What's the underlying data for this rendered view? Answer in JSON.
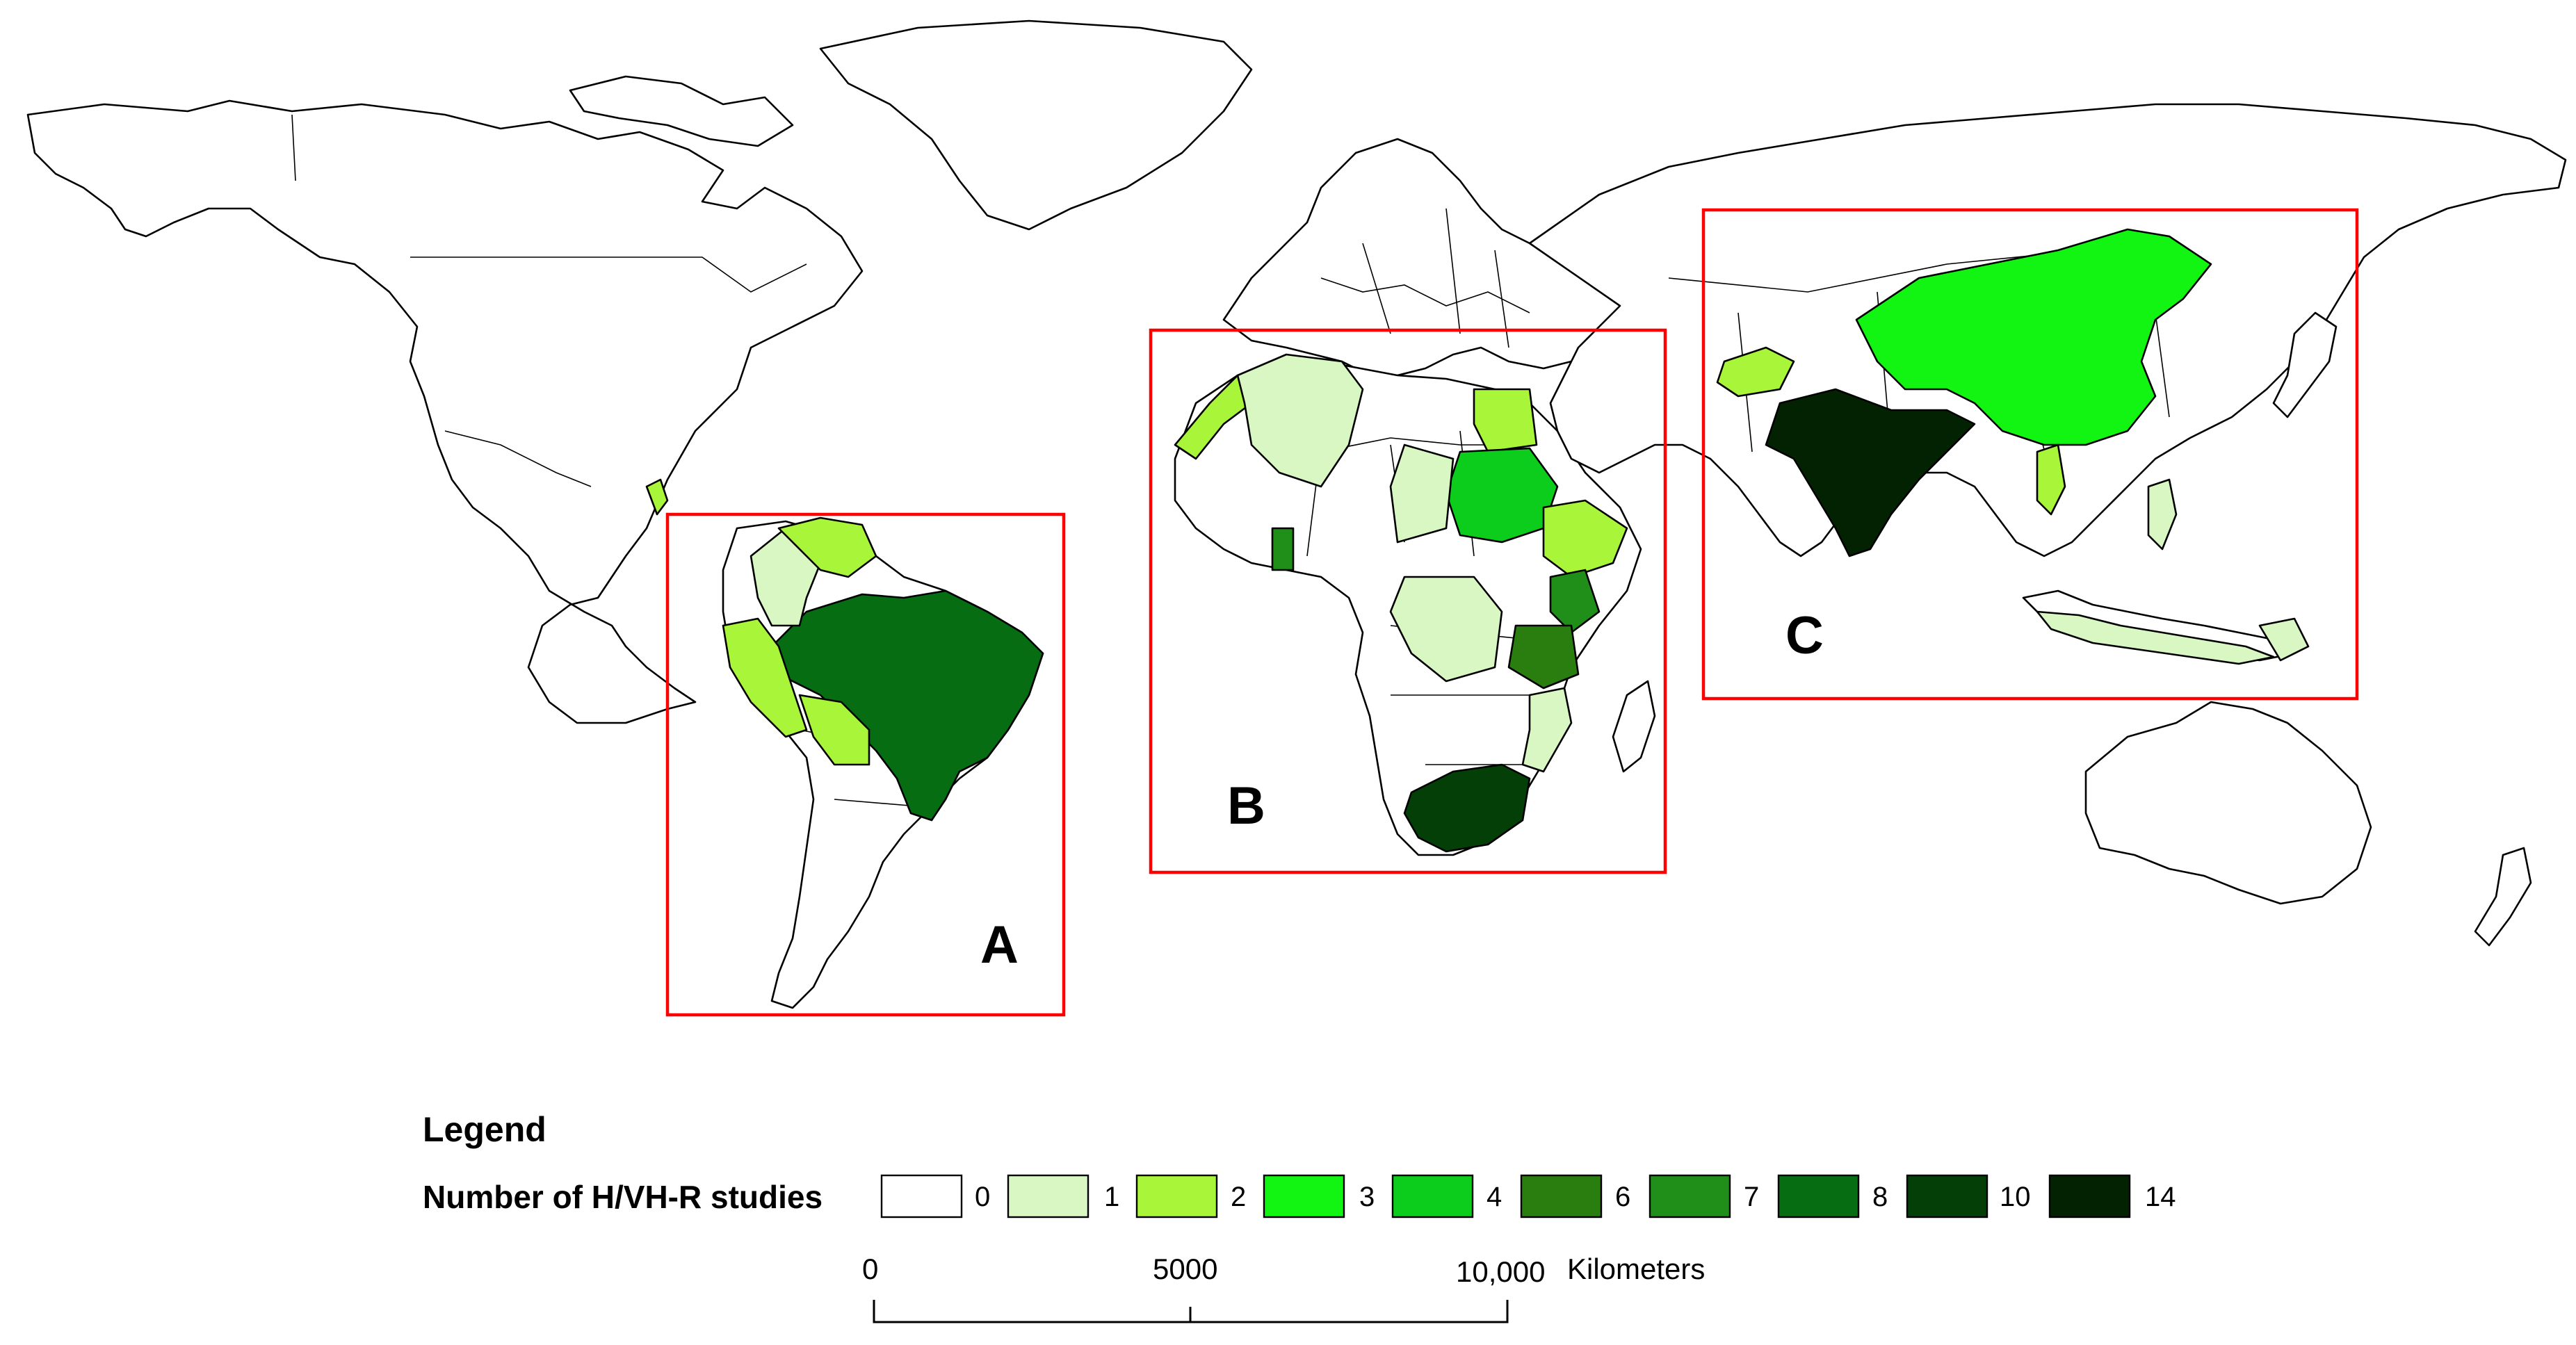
{
  "regions": [
    {
      "id": "A",
      "label": "A"
    },
    {
      "id": "B",
      "label": "B"
    },
    {
      "id": "C",
      "label": "C"
    }
  ],
  "legend": {
    "title": "Legend",
    "subtitle": "Number of H/VH-R studies",
    "classes": [
      {
        "value": "0",
        "color": "#ffffff"
      },
      {
        "value": "1",
        "color": "#d9f7c2"
      },
      {
        "value": "2",
        "color": "#a8f53a"
      },
      {
        "value": "3",
        "color": "#12f512"
      },
      {
        "value": "4",
        "color": "#0ccc1c"
      },
      {
        "value": "6",
        "color": "#2a7d0f"
      },
      {
        "value": "7",
        "color": "#1f8f1a"
      },
      {
        "value": "8",
        "color": "#066d12"
      },
      {
        "value": "10",
        "color": "#043f08"
      },
      {
        "value": "14",
        "color": "#022202"
      }
    ]
  },
  "scale_bar": {
    "ticks": [
      "0",
      "5000",
      "10,000"
    ],
    "unit": "Kilometers"
  },
  "map_colors": {
    "land": "#ffffff",
    "outline": "#000000",
    "region_box": "#ff0000"
  }
}
